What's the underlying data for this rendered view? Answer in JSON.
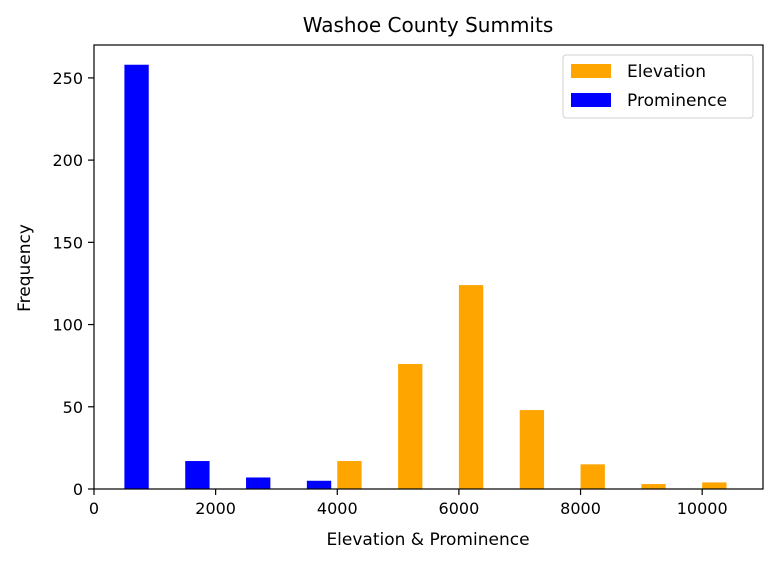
{
  "chart_data": {
    "type": "bar",
    "title": "Washoe County Summits",
    "xlabel": "Elevation & Prominence",
    "ylabel": "Frequency",
    "xlim": [
      0,
      11000
    ],
    "ylim": [
      0,
      270
    ],
    "x_ticks": [
      0,
      2000,
      4000,
      6000,
      8000,
      10000
    ],
    "y_ticks": [
      0,
      50,
      100,
      150,
      200,
      250
    ],
    "grid": false,
    "legend": "top-right",
    "series": [
      {
        "name": "Elevation",
        "color": "#ffa500",
        "bins": [
          {
            "x0": 4000,
            "x1": 4400,
            "value": 17
          },
          {
            "x0": 5000,
            "x1": 5400,
            "value": 76
          },
          {
            "x0": 6000,
            "x1": 6400,
            "value": 124
          },
          {
            "x0": 7000,
            "x1": 7400,
            "value": 48
          },
          {
            "x0": 8000,
            "x1": 8400,
            "value": 15
          },
          {
            "x0": 9000,
            "x1": 9400,
            "value": 3
          },
          {
            "x0": 10000,
            "x1": 10400,
            "value": 4
          }
        ]
      },
      {
        "name": "Prominence",
        "color": "#0000ff",
        "bins": [
          {
            "x0": 500,
            "x1": 900,
            "value": 258
          },
          {
            "x0": 1500,
            "x1": 1900,
            "value": 17
          },
          {
            "x0": 2500,
            "x1": 2900,
            "value": 7
          },
          {
            "x0": 3500,
            "x1": 3900,
            "value": 5
          }
        ]
      }
    ]
  }
}
